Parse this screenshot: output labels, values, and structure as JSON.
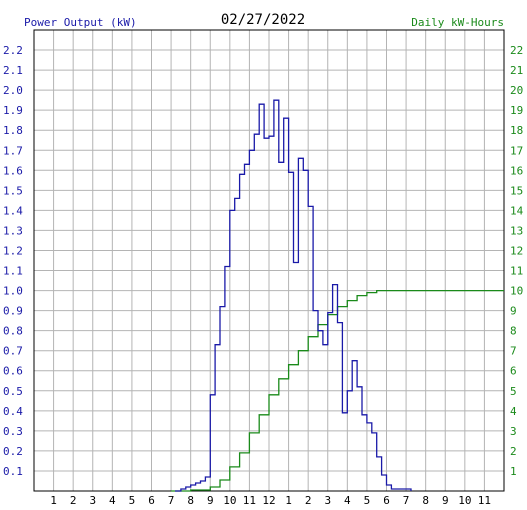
{
  "chart_data": {
    "type": "line",
    "title": "02/27/2022",
    "left_axis_label": "Power Output (kW)",
    "right_axis_label": "Daily kW-Hours",
    "x_ticks": [
      "1",
      "2",
      "3",
      "4",
      "5",
      "6",
      "7",
      "8",
      "9",
      "10",
      "11",
      "12",
      "1",
      "2",
      "3",
      "4",
      "5",
      "6",
      "7",
      "8",
      "9",
      "10",
      "11"
    ],
    "left_ticks": [
      "0.1",
      "0.2",
      "0.3",
      "0.4",
      "0.5",
      "0.6",
      "0.7",
      "0.8",
      "0.9",
      "1.0",
      "1.1",
      "1.2",
      "1.3",
      "1.4",
      "1.5",
      "1.6",
      "1.7",
      "1.8",
      "1.9",
      "2.0",
      "2.1",
      "2.2"
    ],
    "right_ticks": [
      "1",
      "2",
      "3",
      "4",
      "5",
      "6",
      "7",
      "8",
      "9",
      "10",
      "11",
      "12",
      "13",
      "14",
      "15",
      "16",
      "17",
      "18",
      "19",
      "20",
      "21",
      "22"
    ],
    "x_range_hours": [
      0,
      24
    ],
    "ylim_left": [
      0,
      2.3
    ],
    "ylim_right": [
      0,
      23
    ],
    "grid": true,
    "colors": {
      "power": "#1a1aa8",
      "energy": "#1a8a1a",
      "grid": "#b4b4b4",
      "axis_left_text": "#1a1aa8",
      "axis_right_text": "#1a8a1a"
    },
    "series": [
      {
        "key": "power",
        "points": [
          [
            7.2,
            0.0
          ],
          [
            7.5,
            0.01
          ],
          [
            7.75,
            0.02
          ],
          [
            8.0,
            0.03
          ],
          [
            8.25,
            0.04
          ],
          [
            8.5,
            0.05
          ],
          [
            8.75,
            0.07
          ],
          [
            9.0,
            0.48
          ],
          [
            9.25,
            0.73
          ],
          [
            9.5,
            0.92
          ],
          [
            9.75,
            1.12
          ],
          [
            10.0,
            1.4
          ],
          [
            10.25,
            1.46
          ],
          [
            10.5,
            1.58
          ],
          [
            10.75,
            1.63
          ],
          [
            11.0,
            1.7
          ],
          [
            11.25,
            1.78
          ],
          [
            11.5,
            1.93
          ],
          [
            11.75,
            1.76
          ],
          [
            12.0,
            1.77
          ],
          [
            12.25,
            1.95
          ],
          [
            12.5,
            1.64
          ],
          [
            12.75,
            1.86
          ],
          [
            13.0,
            1.59
          ],
          [
            13.25,
            1.14
          ],
          [
            13.5,
            1.66
          ],
          [
            13.75,
            1.6
          ],
          [
            14.0,
            1.42
          ],
          [
            14.25,
            0.9
          ],
          [
            14.5,
            0.8
          ],
          [
            14.75,
            0.73
          ],
          [
            15.0,
            0.89
          ],
          [
            15.25,
            1.03
          ],
          [
            15.5,
            0.84
          ],
          [
            15.75,
            0.39
          ],
          [
            16.0,
            0.5
          ],
          [
            16.25,
            0.65
          ],
          [
            16.5,
            0.52
          ],
          [
            16.75,
            0.38
          ],
          [
            17.0,
            0.34
          ],
          [
            17.25,
            0.29
          ],
          [
            17.5,
            0.17
          ],
          [
            17.75,
            0.08
          ],
          [
            18.0,
            0.03
          ],
          [
            18.25,
            0.01
          ],
          [
            18.5,
            0.01
          ],
          [
            18.75,
            0.01
          ],
          [
            19.0,
            0.01
          ],
          [
            19.25,
            0.0
          ]
        ]
      },
      {
        "key": "energy",
        "points": [
          [
            7.0,
            0.0
          ],
          [
            8.0,
            0.05
          ],
          [
            9.0,
            0.2
          ],
          [
            9.5,
            0.55
          ],
          [
            10.0,
            1.2
          ],
          [
            10.5,
            1.9
          ],
          [
            11.0,
            2.9
          ],
          [
            11.5,
            3.8
          ],
          [
            12.0,
            4.8
          ],
          [
            12.5,
            5.6
          ],
          [
            13.0,
            6.3
          ],
          [
            13.5,
            7.0
          ],
          [
            14.0,
            7.7
          ],
          [
            14.5,
            8.3
          ],
          [
            15.0,
            8.8
          ],
          [
            15.5,
            9.2
          ],
          [
            16.0,
            9.5
          ],
          [
            16.5,
            9.75
          ],
          [
            17.0,
            9.9
          ],
          [
            17.5,
            10.0
          ],
          [
            18.0,
            10.0
          ],
          [
            24.0,
            10.0
          ]
        ]
      }
    ]
  }
}
